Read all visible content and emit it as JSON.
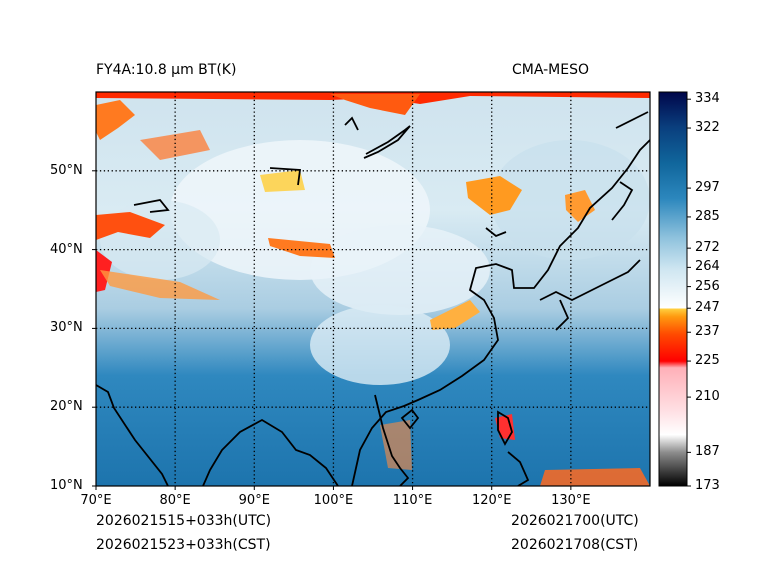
{
  "header": {
    "product_title": "FY4A:10.8 µm BT(K)",
    "model_name": "CMA-MESO"
  },
  "footer": {
    "init_utc": "2026021515+033h(UTC)",
    "init_cst": "2026021523+033h(CST)",
    "valid_utc": "2026021700(UTC)",
    "valid_cst": "2026021708(CST)"
  },
  "map": {
    "lon_range": [
      70,
      140
    ],
    "lat_range": [
      10,
      60
    ],
    "lon_ticks": [
      {
        "value": 70,
        "label": "70°E"
      },
      {
        "value": 80,
        "label": "80°E"
      },
      {
        "value": 90,
        "label": "90°E"
      },
      {
        "value": 100,
        "label": "100°E"
      },
      {
        "value": 110,
        "label": "110°E"
      },
      {
        "value": 120,
        "label": "120°E"
      },
      {
        "value": 130,
        "label": "130°E"
      }
    ],
    "lat_ticks": [
      {
        "value": 10,
        "label": "10°N"
      },
      {
        "value": 20,
        "label": "20°N"
      },
      {
        "value": 30,
        "label": "30°N"
      },
      {
        "value": 40,
        "label": "40°N"
      },
      {
        "value": 50,
        "label": "50°N"
      }
    ]
  },
  "colorbar": {
    "range": [
      173,
      337
    ],
    "ticks": [
      {
        "value": 173,
        "label": "173"
      },
      {
        "value": 187,
        "label": "187"
      },
      {
        "value": 210,
        "label": "210"
      },
      {
        "value": 225,
        "label": "225"
      },
      {
        "value": 237,
        "label": "237"
      },
      {
        "value": 247,
        "label": "247"
      },
      {
        "value": 256,
        "label": "256"
      },
      {
        "value": 264,
        "label": "264"
      },
      {
        "value": 272,
        "label": "272"
      },
      {
        "value": 285,
        "label": "285"
      },
      {
        "value": 297,
        "label": "297"
      },
      {
        "value": 322,
        "label": "322"
      },
      {
        "value": 334,
        "label": "334"
      }
    ],
    "colors": {
      "black": "#000000",
      "gray": "#8c8c8c",
      "white": "#ffffff",
      "pink": "#ffc0c8",
      "red": "#ff0000",
      "orange": "#ff7a00",
      "yellow": "#ffd040",
      "light_blue": "#d8ecf4",
      "mid_blue": "#2c87bd",
      "dark_blue": "#00064a"
    }
  }
}
